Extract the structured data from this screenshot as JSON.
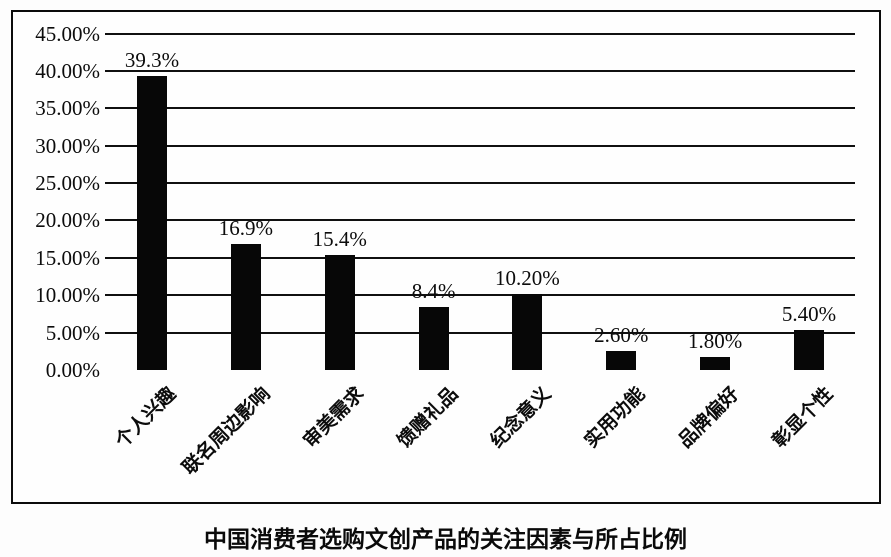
{
  "chart_data": {
    "type": "bar",
    "title": "中国消费者选购文创产品的关注因素与所占比例",
    "categories": [
      "个人兴趣",
      "联名周边影响",
      "审美需求",
      "馈赠礼品",
      "纪念意义",
      "实用功能",
      "品牌偏好",
      "彰显个性"
    ],
    "values": [
      39.3,
      16.9,
      15.4,
      8.4,
      10.2,
      2.6,
      1.8,
      5.4
    ],
    "value_labels": [
      "39.3%",
      "16.9%",
      "15.4%",
      "8.4%",
      "10.20%",
      "2.60%",
      "1.80%",
      "5.40%"
    ],
    "y_tick_values": [
      0,
      5,
      10,
      15,
      20,
      25,
      30,
      35,
      40,
      45
    ],
    "y_tick_labels": [
      "0.00%",
      "5.00%",
      "10.00%",
      "15.00%",
      "20.00%",
      "25.00%",
      "30.00%",
      "35.00%",
      "40.00%",
      "45.00%"
    ],
    "ylim": [
      0,
      45
    ],
    "xlabel": "",
    "ylabel": "",
    "grid": "horizontal gridlines every 5%, no zero baseline",
    "legend": "none",
    "bar_color": "#070707",
    "background": "#ffffff",
    "x_label_rotation_deg": -45
  }
}
